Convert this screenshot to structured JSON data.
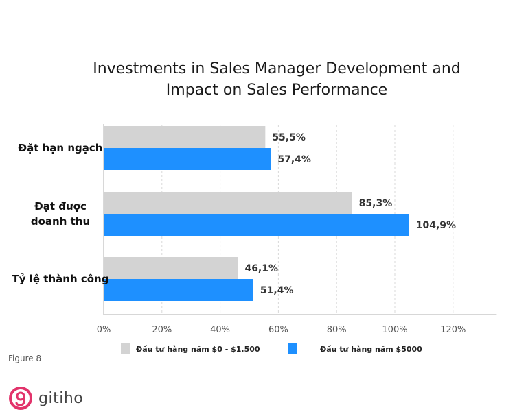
{
  "chart_data": {
    "type": "bar",
    "orientation": "horizontal",
    "title": "Investments in Sales Manager Development and Impact on Sales Performance",
    "title_lines": [
      "Investments in Sales Manager Development and",
      "Impact on Sales Performance"
    ],
    "categories": [
      "Đặt hạn ngạch",
      "Đạt được doanh thu",
      "Tỷ lệ thành công"
    ],
    "category_lines": [
      [
        "Đặt hạn ngạch"
      ],
      [
        "Đạt được",
        "doanh thu"
      ],
      [
        "Tỷ lệ thành công"
      ]
    ],
    "series": [
      {
        "name": "Đầu tư hàng năm $0 - $1.500",
        "values": [
          55.5,
          85.3,
          46.1
        ],
        "labels": [
          "55,5%",
          "85,3%",
          "46,1%"
        ],
        "color": "#d3d3d3"
      },
      {
        "name": "Đầu tư hàng năm $5000",
        "values": [
          57.4,
          104.9,
          51.4
        ],
        "labels": [
          "57,4%",
          "104,9%",
          "51,4%"
        ],
        "color": "#1e90ff"
      }
    ],
    "xlim": [
      0,
      135
    ],
    "ticks": [
      0,
      20,
      40,
      60,
      80,
      100,
      120
    ],
    "tick_labels": [
      "0%",
      "20%",
      "40%",
      "60%",
      "80%",
      "100%",
      "120%"
    ],
    "grid": true,
    "legend_position": "bottom",
    "xlabel": "",
    "ylabel": ""
  },
  "caption": "Figure 8",
  "brand": {
    "name": "gitiho",
    "color": "#e2336b"
  }
}
